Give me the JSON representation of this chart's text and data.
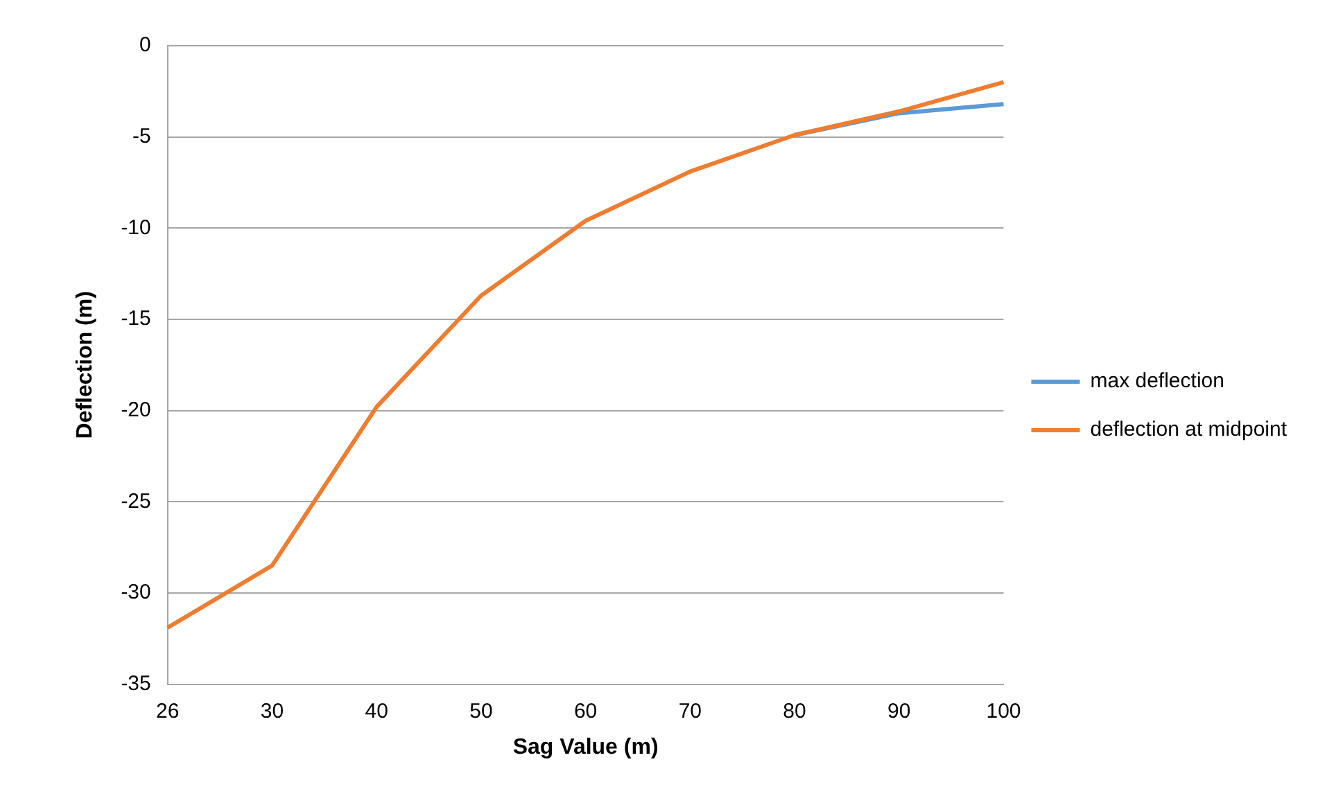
{
  "chart_data": {
    "type": "line",
    "xlabel": "Sag Value (m)",
    "ylabel": "Deflection (m)",
    "categories": [
      "26",
      "30",
      "40",
      "50",
      "60",
      "70",
      "80",
      "90",
      "100"
    ],
    "series": [
      {
        "name": "max deflection",
        "color": "#5b9bd5",
        "values": [
          null,
          null,
          null,
          null,
          null,
          null,
          -4.9,
          -3.7,
          -3.2
        ]
      },
      {
        "name": "deflection at midpoint",
        "color": "#ed7d31",
        "values": [
          -31.9,
          -28.5,
          -19.8,
          -13.7,
          -9.6,
          -6.9,
          -4.9,
          -3.6,
          -2.0
        ]
      }
    ],
    "ylim": [
      -35,
      0
    ],
    "yticks": [
      -35,
      -30,
      -25,
      -20,
      -15,
      -10,
      -5,
      0
    ],
    "grid": "y",
    "legend": "right",
    "marker": "none",
    "line_style": "solid"
  }
}
